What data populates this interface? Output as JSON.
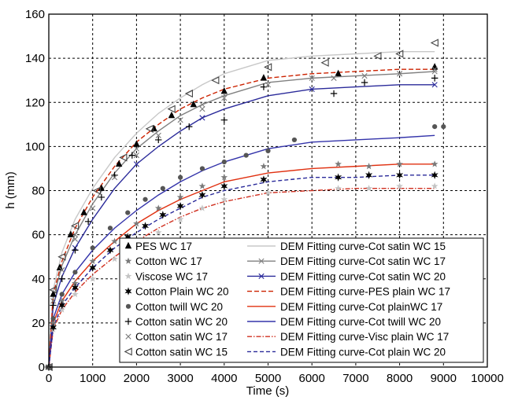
{
  "chart_data": {
    "type": "scatter",
    "xlabel": "Time (s)",
    "ylabel": "h (mm)",
    "xlim": [
      0,
      10000
    ],
    "ylim": [
      0,
      160
    ],
    "xticks": [
      "0",
      "1000",
      "2000",
      "3000",
      "4000",
      "5000",
      "6000",
      "7000",
      "8000",
      "9000",
      "10000"
    ],
    "yticks": [
      "0",
      "20",
      "40",
      "60",
      "80",
      "100",
      "120",
      "140",
      "160"
    ],
    "grid": true,
    "legend_position": "bottom-center",
    "series": [
      {
        "name": "PES WC 17",
        "kind": "points",
        "marker": "triangle-filled",
        "color": "#000000",
        "x": [
          0,
          100,
          250,
          500,
          800,
          1200,
          1600,
          2000,
          2400,
          2800,
          3300,
          4000,
          4900,
          6600,
          8800
        ],
        "y": [
          0,
          33,
          45,
          60,
          70,
          81,
          92,
          101,
          108,
          114,
          119,
          125,
          131,
          133,
          136
        ]
      },
      {
        "name": "Cotton WC 17",
        "kind": "points",
        "marker": "star",
        "color": "#7a7a7a",
        "x": [
          0,
          100,
          300,
          600,
          1000,
          1500,
          2000,
          2500,
          3000,
          3500,
          4000,
          4900,
          6600,
          7300,
          8000,
          8800
        ],
        "y": [
          0,
          20,
          30,
          38,
          48,
          57,
          65,
          72,
          77,
          82,
          86,
          91,
          92,
          91,
          92,
          92
        ]
      },
      {
        "name": "Viscose WC 17",
        "kind": "points",
        "marker": "star",
        "color": "#c4c4c4",
        "x": [
          0,
          100,
          300,
          600,
          1000,
          1500,
          2000,
          2500,
          3000,
          3500,
          4000,
          5000,
          6600,
          7300,
          8000,
          8800
        ],
        "y": [
          0,
          17,
          26,
          33,
          40,
          49,
          56,
          61,
          67,
          72,
          76,
          79,
          81,
          81,
          82,
          82
        ]
      },
      {
        "name": "Cotton Plain WC 20",
        "kind": "points",
        "marker": "star6",
        "color": "#000000",
        "x": [
          0,
          100,
          300,
          600,
          1000,
          1400,
          1800,
          2200,
          2600,
          3000,
          3500,
          4000,
          4900,
          6600,
          7300,
          8000,
          8800
        ],
        "y": [
          0,
          18,
          28,
          36,
          45,
          53,
          59,
          64,
          69,
          73,
          78,
          82,
          85,
          86,
          87,
          87,
          87
        ]
      },
      {
        "name": "Cotton twill WC 20",
        "kind": "points",
        "marker": "circle",
        "color": "#555555",
        "x": [
          0,
          100,
          300,
          600,
          1000,
          1400,
          1800,
          2200,
          2600,
          3000,
          3500,
          4000,
          4500,
          5000,
          5600,
          8800,
          9000
        ],
        "y": [
          0,
          22,
          33,
          43,
          54,
          63,
          70,
          76,
          81,
          86,
          90,
          93,
          96,
          98,
          103,
          109,
          109
        ]
      },
      {
        "name": "Cotton satin WC 20",
        "kind": "points",
        "marker": "plus",
        "color": "#000000",
        "x": [
          0,
          100,
          300,
          600,
          900,
          1200,
          1500,
          1900,
          2500,
          3200,
          4000,
          4900,
          6500,
          7200,
          8800
        ],
        "y": [
          0,
          28,
          40,
          53,
          66,
          77,
          87,
          96,
          103,
          109,
          112,
          127,
          124,
          129,
          131
        ]
      },
      {
        "name": "Cotton satin WC 17",
        "kind": "points",
        "marker": "x",
        "color": "#777777",
        "x": [
          0,
          100,
          300,
          600,
          1000,
          1500,
          2000,
          2500,
          3000,
          3500,
          4000,
          5000,
          6500,
          7200,
          8000,
          8800
        ],
        "y": [
          0,
          30,
          44,
          58,
          72,
          86,
          96,
          105,
          112,
          117,
          122,
          128,
          131,
          132,
          133,
          135
        ]
      },
      {
        "name": "Cotton satin WC 15",
        "kind": "points",
        "marker": "triangle-left",
        "color": "#444444",
        "x": [
          0,
          100,
          300,
          600,
          1100,
          1700,
          2300,
          2800,
          3200,
          3800,
          5000,
          6300,
          7500,
          8000,
          8800
        ],
        "y": [
          0,
          35,
          50,
          64,
          80,
          95,
          108,
          117,
          124,
          130,
          136,
          138,
          141,
          142,
          147
        ]
      },
      {
        "name": "DEM Fitting curve-Cot satin WC 15",
        "kind": "line",
        "color": "#c8c8c8",
        "dash": "",
        "x": [
          0,
          100,
          300,
          600,
          1000,
          1500,
          2000,
          2500,
          3000,
          3500,
          4000,
          5000,
          6000,
          7000,
          8000,
          8800
        ],
        "y": [
          0,
          35,
          52,
          67,
          81,
          95,
          106,
          115,
          122,
          128,
          133,
          139,
          141,
          142,
          143,
          143
        ]
      },
      {
        "name": "DEM Fitting curve-Cot satin WC 17",
        "kind": "line",
        "color": "#808080",
        "dash": "",
        "marker": "x",
        "x": [
          0,
          100,
          300,
          600,
          1000,
          1500,
          2000,
          2500,
          3000,
          3500,
          4000,
          5000,
          6000,
          7000,
          8000,
          8800
        ],
        "y": [
          0,
          31,
          46,
          60,
          74,
          88,
          99,
          107,
          114,
          119,
          123,
          129,
          131,
          132,
          133,
          134
        ]
      },
      {
        "name": "DEM Fitting curve-Cot satin WC 20",
        "kind": "line",
        "color": "#2a2a9a",
        "dash": "",
        "marker": "x",
        "x": [
          0,
          100,
          300,
          600,
          1000,
          1500,
          2000,
          2500,
          3000,
          3500,
          4000,
          5000,
          6000,
          7000,
          8000,
          8800
        ],
        "y": [
          0,
          28,
          41,
          54,
          67,
          81,
          92,
          100,
          107,
          113,
          117,
          123,
          126,
          127,
          128,
          128
        ]
      },
      {
        "name": "DEM Fitting curve-PES plain WC 17",
        "kind": "line",
        "color": "#cc2200",
        "dash": "6,3",
        "x": [
          0,
          100,
          300,
          600,
          1000,
          1500,
          2000,
          2500,
          3000,
          3500,
          4000,
          5000,
          6000,
          7000,
          8000,
          8800
        ],
        "y": [
          0,
          33,
          48,
          63,
          77,
          91,
          102,
          110,
          117,
          122,
          126,
          131,
          133,
          134,
          135,
          135
        ]
      },
      {
        "name": "DEM Fitting curve-Cot plainWC 17",
        "kind": "line",
        "color": "#e03010",
        "dash": "",
        "x": [
          0,
          100,
          300,
          600,
          1000,
          1500,
          2000,
          2500,
          3000,
          3500,
          4000,
          5000,
          6000,
          7000,
          8000,
          8800
        ],
        "y": [
          0,
          20,
          30,
          39,
          48,
          57,
          65,
          71,
          76,
          80,
          84,
          88,
          90,
          91,
          92,
          92
        ]
      },
      {
        "name": "DEM Fitting curve-Cot twill WC 20",
        "kind": "line",
        "color": "#3333aa",
        "dash": "",
        "x": [
          0,
          100,
          300,
          600,
          1000,
          1500,
          2000,
          2500,
          3000,
          3500,
          4000,
          5000,
          6000,
          7000,
          8000,
          8800
        ],
        "y": [
          0,
          22,
          33,
          43,
          53,
          63,
          71,
          78,
          84,
          89,
          93,
          99,
          102,
          103,
          104,
          105
        ]
      },
      {
        "name": "DEM Fitting curve-Visc plain WC 17",
        "kind": "line",
        "color": "#d03020",
        "dash": "6,2,1.5,2",
        "x": [
          0,
          100,
          300,
          600,
          1000,
          1500,
          2000,
          2500,
          3000,
          3500,
          4000,
          5000,
          6000,
          7000,
          8000,
          8800
        ],
        "y": [
          0,
          17,
          26,
          34,
          42,
          50,
          57,
          63,
          68,
          72,
          75,
          79,
          80,
          81,
          81,
          81
        ]
      },
      {
        "name": "DEM Fitting curve-Cot plain WC 20",
        "kind": "line",
        "color": "#2a2a9a",
        "dash": "5,3",
        "x": [
          0,
          100,
          300,
          600,
          1000,
          1500,
          2000,
          2500,
          3000,
          3500,
          4000,
          5000,
          6000,
          7000,
          8000,
          8800
        ],
        "y": [
          0,
          18,
          28,
          36,
          45,
          54,
          61,
          67,
          72,
          77,
          80,
          84,
          86,
          86,
          87,
          87
        ]
      }
    ]
  }
}
